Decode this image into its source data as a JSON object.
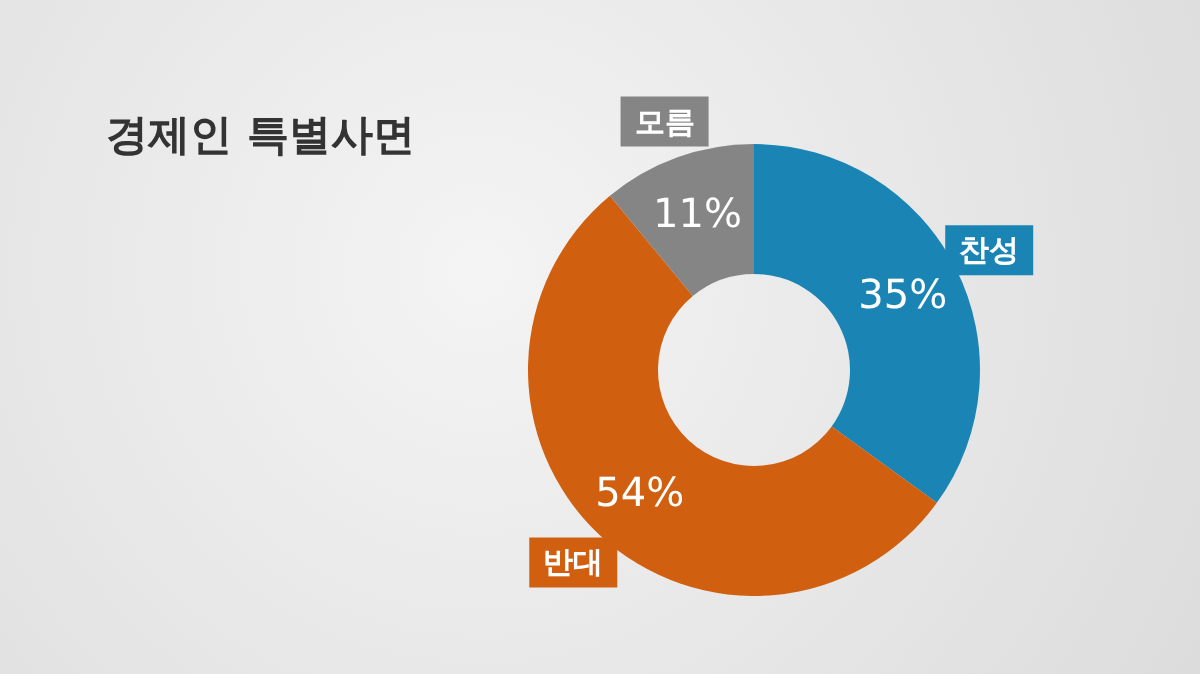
{
  "chart_data": {
    "type": "donut",
    "title": "경제인 특별사면",
    "categories": [
      "찬성",
      "반대",
      "모름"
    ],
    "values": [
      35,
      54,
      11
    ],
    "value_labels": [
      "35%",
      "54%",
      "11%"
    ],
    "colors": [
      "#1a85b4",
      "#d05f10",
      "#858585"
    ]
  }
}
